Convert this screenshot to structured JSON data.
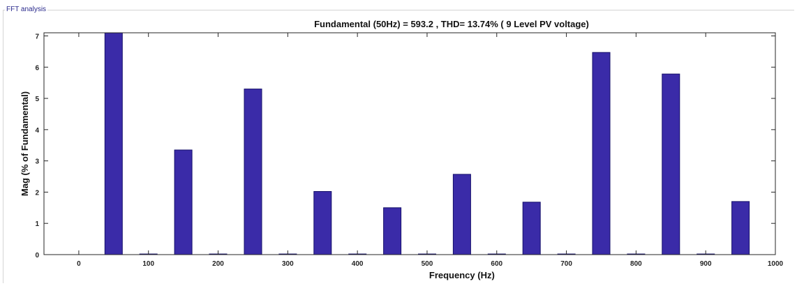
{
  "panel": {
    "title": "FFT analysis"
  },
  "chart_data": {
    "type": "bar",
    "title": "Fundamental (50Hz) = 593.2 , THD= 13.74% ( 9 Level PV voltage)",
    "xlabel": "Frequency (Hz)",
    "ylabel": "Mag (% of Fundamental)",
    "xlim": [
      -50,
      1000
    ],
    "ylim": [
      0,
      7.1
    ],
    "xticks": [
      0,
      100,
      200,
      300,
      400,
      500,
      600,
      700,
      800,
      900,
      1000
    ],
    "yticks": [
      0,
      1,
      2,
      3,
      4,
      5,
      6,
      7
    ],
    "bar_width_hz": 25,
    "bar_color": "#3a2ba8",
    "grid": false,
    "x": [
      50,
      100,
      150,
      200,
      250,
      300,
      350,
      400,
      450,
      500,
      550,
      600,
      650,
      700,
      750,
      800,
      850,
      900,
      950
    ],
    "values": [
      7.1,
      0.02,
      3.35,
      0.02,
      5.3,
      0.02,
      2.02,
      0.02,
      1.5,
      0.02,
      2.57,
      0.02,
      1.68,
      0.02,
      6.47,
      0.02,
      5.78,
      0.02,
      1.7
    ]
  }
}
